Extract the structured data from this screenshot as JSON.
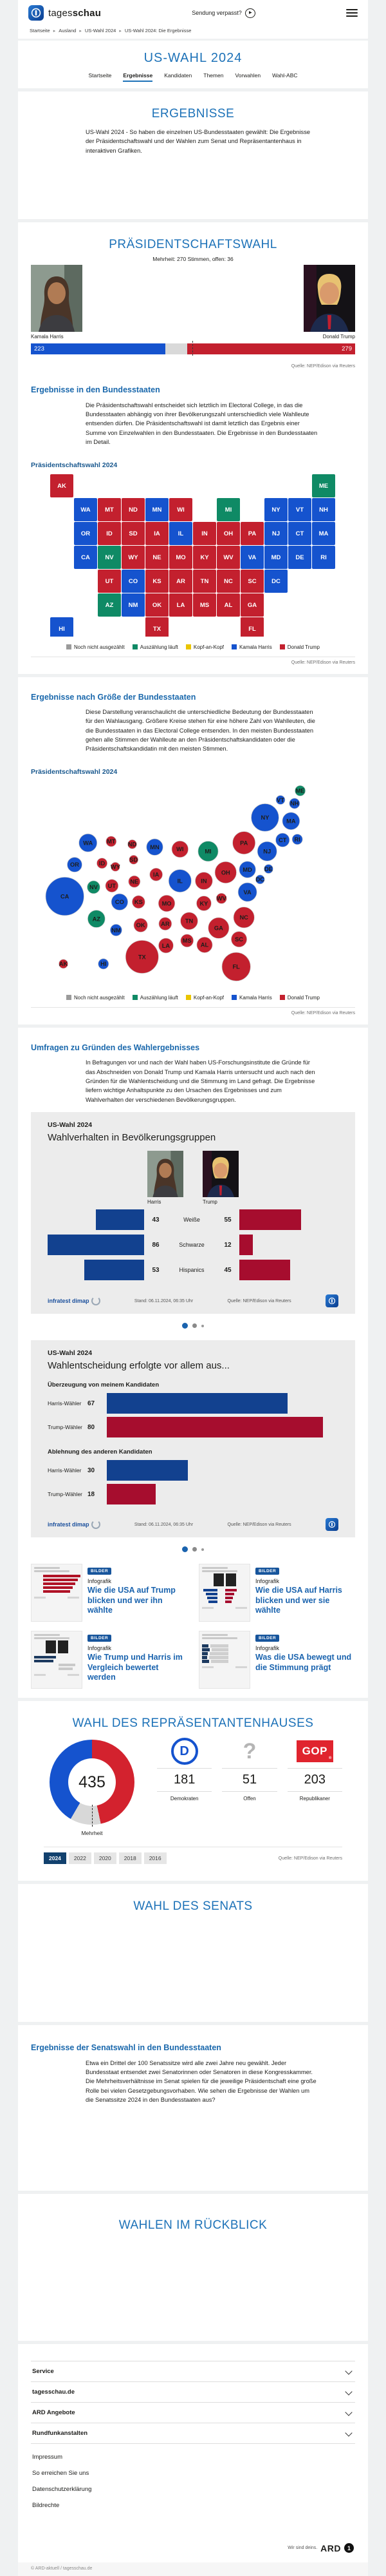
{
  "colors": {
    "harris_blue": "#1553ce",
    "trump_red": "#c3202e",
    "counting_green": "#0f8a65",
    "open_gray": "#9b9b9b",
    "tie_yellow": "#eac501",
    "info_navy": "#12418f",
    "info_crimson": "#a60d2e",
    "heading_blue": "#1d72b8"
  },
  "header": {
    "brand_prefix": "tages",
    "brand_suffix": "schau",
    "missed_show": "Sendung verpasst?"
  },
  "breadcrumb": [
    "Startseite",
    "Ausland",
    "US-Wahl 2024",
    "US-Wahl 2024: Die Ergebnisse"
  ],
  "page": {
    "title": "US-WAHL 2024"
  },
  "tabs": [
    {
      "label": "Startseite",
      "active": false
    },
    {
      "label": "Ergebnisse",
      "active": true
    },
    {
      "label": "Kandidaten",
      "active": false
    },
    {
      "label": "Themen",
      "active": false
    },
    {
      "label": "Vorwahlen",
      "active": false
    },
    {
      "label": "Wahl-ABC",
      "active": false
    }
  ],
  "ergebnisse": {
    "title": "ERGEBNISSE",
    "intro": "US-Wahl 2024 - So haben die einzelnen US-Bundesstaaten gewählt: Die Ergebnisse der Präsidentschaftswahl und der Wahlen zum Senat und Repräsentantenhaus in interaktiven Grafiken."
  },
  "praesident": {
    "title": "PRÄSIDENTSCHAFTSWAHL",
    "majority_note": "Mehrheit: 270 Stimmen, offen: 36",
    "harris_name": "Kamala Harris",
    "trump_name": "Donald Trump",
    "source": "Quelle: NEP/Edison via Reuters"
  },
  "staaten": {
    "heading": "Ergebnisse in den Bundesstaaten",
    "text": "Die Präsidentschaftswahl entscheidet sich letztlich im Electoral College, in das die Bundesstaaten abhängig von ihrer Bevölkerungszahl unterschiedlich viele Wahlleute entsenden dürfen. Die Präsidentschaftswahl ist damit letztlich das Ergebnis einer Summe von Einzelwahlen in den Bundesstaaten. Die Ergebnisse in den Bundesstaaten im Detail.",
    "chart_title": "Präsidentschaftswahl 2024",
    "source": "Quelle: NEP/Edison via Reuters"
  },
  "legend": [
    {
      "key": "open",
      "label": "Noch nicht ausgezählt"
    },
    {
      "key": "counting",
      "label": "Auszählung läuft"
    },
    {
      "key": "tie",
      "label": "Kopf-an-Kopf"
    },
    {
      "key": "harris",
      "label": "Kamala Harris"
    },
    {
      "key": "trump",
      "label": "Donald Trump"
    }
  ],
  "groesse": {
    "heading": "Ergebnisse nach Größe der Bundesstaaten",
    "text": "Diese Darstellung veranschaulicht die unterschiedliche Bedeutung der Bundesstaaten für den Wahlausgang. Größere Kreise stehen für eine höhere Zahl von Wahlleuten, die die Bundesstaaten in das Electoral College entsenden. In den meisten Bundesstaaten gehen alle Stimmen der Wahlleute an den Präsidentschaftskandidaten oder die Präsidentschaftskandidatin mit den meisten Stimmen.",
    "chart_title": "Präsidentschaftswahl 2024",
    "source": "Quelle: NEP/Edison via Reuters"
  },
  "umfragen": {
    "heading": "Umfragen zu Gründen des Wahlergebnisses",
    "text": "In Befragungen vor und nach der Wahl haben US-Forschungsinstitute die Gründe für das Abschneiden von Donald Trump und Kamala Harris untersucht und auch nach den Gründen für die Wahlentscheidung und die Stimmung im Land gefragt. Die Ergebnisse liefern wichtige Anhaltspunkte zu den Ursachen des Ergebnisses und zum Wahlverhalten der verschiedenen Bevölkerungsgruppen."
  },
  "infographic1": {
    "kicker": "US-Wahl 2024",
    "title": "Wahlverhalten in Bevölkerungsgruppen",
    "col_left": "Harris",
    "col_right": "Trump",
    "stand": "Stand:  06.11.2024, 06:35 Uhr",
    "quelle": "Quelle: NEP/Edison via Reuters",
    "brand": "infratest dimap"
  },
  "infographic2": {
    "kicker": "US-Wahl 2024",
    "title": "Wahlentscheidung erfolgte vor allem aus...",
    "stand": "Stand:  06.11.2024, 06:35 Uhr",
    "quelle": "Quelle: NEP/Edison via Reuters",
    "brand": "infratest dimap"
  },
  "teasers": [
    {
      "badge": "BILDER",
      "kicker": "Infografik",
      "title": "Wie die USA auf Trump blicken und wer ihn wählte",
      "thumb": "bars-red"
    },
    {
      "badge": "BILDER",
      "kicker": "Infografik",
      "title": "Wie die USA auf Harris blicken und wer sie wählte",
      "thumb": "compare"
    },
    {
      "badge": "BILDER",
      "kicker": "Infografik",
      "title": "Wie Trump und Harris im Vergleich bewertet werden",
      "thumb": "compare2"
    },
    {
      "badge": "BILDER",
      "kicker": "Infografik",
      "title": "Was die USA bewegt und die Stimmung prägt",
      "thumb": "mood"
    }
  ],
  "house": {
    "title": "WAHL DES REPRÄSENTANTENHAUSES",
    "total": "435",
    "majority_label": "Mehrheit",
    "parties": [
      {
        "logo": "dem",
        "value": "181",
        "label": "Demokraten"
      },
      {
        "logo": "question",
        "value": "51",
        "label": "Offen"
      },
      {
        "logo": "gop",
        "value": "203",
        "label": "Republikaner"
      }
    ],
    "years": [
      "2024",
      "2022",
      "2020",
      "2018",
      "2016"
    ],
    "active_year": "2024",
    "source": "Quelle: NEP/Edison via Reuters"
  },
  "senat": {
    "title": "WAHL DES SENATS"
  },
  "senat_ergebnisse": {
    "heading": "Ergebnisse der Senatswahl in den Bundesstaaten",
    "text": "Etwa ein Drittel der 100 Senatssitze wird alle zwei Jahre neu gewählt. Jeder Bundesstaat entsendet zwei Senatorinnen oder Senatoren in diese Kongresskammer. Die Mehrheitsverhältnisse im Senat spielen für die jeweilige Präsidentschaft eine große Rolle bei vielen Gesetzgebungsvorhaben. Wie sehen die Ergebnisse der Wahlen um die Senatssitze 2024 in den Bundesstaaten aus?"
  },
  "rueckblick": {
    "title": "WAHLEN IM RÜCKBLICK"
  },
  "footer": {
    "accordion": [
      "Service",
      "tagesschau.de",
      "ARD Angebote",
      "Rundfunkanstalten"
    ],
    "links": [
      "Impressum",
      "So erreichen Sie uns",
      "Datenschutzerklärung",
      "Bildrechte"
    ],
    "ard_claim": "Wir sind deins.",
    "ard_word": "ARD",
    "copyright": "© ARD-aktuell / tagesschau.de"
  },
  "chart_data": [
    {
      "type": "bar",
      "name": "electoral-college-gesamt",
      "title": "Präsidentschaftswahl Electoral College",
      "categories": [
        "Kamala Harris",
        "offen",
        "Donald Trump"
      ],
      "values": [
        223,
        36,
        279
      ],
      "majority": 270,
      "total": 538
    },
    {
      "type": "map",
      "name": "praesidentschaftswahl-bundesstaaten",
      "title": "Präsidentschaftswahl 2024",
      "legend": [
        "Noch nicht ausgezählt",
        "Auszählung läuft",
        "Kopf-an-Kopf",
        "Kamala Harris",
        "Donald Trump"
      ],
      "states": [
        {
          "code": "AK",
          "ev": 3,
          "status": "trump"
        },
        {
          "code": "AL",
          "ev": 9,
          "status": "trump"
        },
        {
          "code": "AR",
          "ev": 6,
          "status": "trump"
        },
        {
          "code": "AZ",
          "ev": 11,
          "status": "counting"
        },
        {
          "code": "CA",
          "ev": 54,
          "status": "harris"
        },
        {
          "code": "CO",
          "ev": 10,
          "status": "harris"
        },
        {
          "code": "CT",
          "ev": 7,
          "status": "harris"
        },
        {
          "code": "DC",
          "ev": 3,
          "status": "harris"
        },
        {
          "code": "DE",
          "ev": 3,
          "status": "harris"
        },
        {
          "code": "FL",
          "ev": 30,
          "status": "trump"
        },
        {
          "code": "GA",
          "ev": 16,
          "status": "trump"
        },
        {
          "code": "HI",
          "ev": 4,
          "status": "harris"
        },
        {
          "code": "IA",
          "ev": 6,
          "status": "trump"
        },
        {
          "code": "ID",
          "ev": 4,
          "status": "trump"
        },
        {
          "code": "IL",
          "ev": 19,
          "status": "harris"
        },
        {
          "code": "IN",
          "ev": 11,
          "status": "trump"
        },
        {
          "code": "KS",
          "ev": 6,
          "status": "trump"
        },
        {
          "code": "KY",
          "ev": 8,
          "status": "trump"
        },
        {
          "code": "LA",
          "ev": 8,
          "status": "trump"
        },
        {
          "code": "MA",
          "ev": 11,
          "status": "harris"
        },
        {
          "code": "MD",
          "ev": 10,
          "status": "harris"
        },
        {
          "code": "ME",
          "ev": 4,
          "status": "counting"
        },
        {
          "code": "MI",
          "ev": 15,
          "status": "counting"
        },
        {
          "code": "MN",
          "ev": 10,
          "status": "harris"
        },
        {
          "code": "MO",
          "ev": 10,
          "status": "trump"
        },
        {
          "code": "MS",
          "ev": 6,
          "status": "trump"
        },
        {
          "code": "MT",
          "ev": 4,
          "status": "trump"
        },
        {
          "code": "NC",
          "ev": 16,
          "status": "trump"
        },
        {
          "code": "ND",
          "ev": 3,
          "status": "trump"
        },
        {
          "code": "NE",
          "ev": 5,
          "status": "trump"
        },
        {
          "code": "NH",
          "ev": 4,
          "status": "harris"
        },
        {
          "code": "NJ",
          "ev": 14,
          "status": "harris"
        },
        {
          "code": "NM",
          "ev": 5,
          "status": "harris"
        },
        {
          "code": "NV",
          "ev": 6,
          "status": "counting"
        },
        {
          "code": "NY",
          "ev": 28,
          "status": "harris"
        },
        {
          "code": "OH",
          "ev": 17,
          "status": "trump"
        },
        {
          "code": "OK",
          "ev": 7,
          "status": "trump"
        },
        {
          "code": "OR",
          "ev": 8,
          "status": "harris"
        },
        {
          "code": "PA",
          "ev": 19,
          "status": "trump"
        },
        {
          "code": "RI",
          "ev": 4,
          "status": "harris"
        },
        {
          "code": "SC",
          "ev": 9,
          "status": "trump"
        },
        {
          "code": "SD",
          "ev": 3,
          "status": "trump"
        },
        {
          "code": "TN",
          "ev": 11,
          "status": "trump"
        },
        {
          "code": "TX",
          "ev": 40,
          "status": "trump"
        },
        {
          "code": "UT",
          "ev": 6,
          "status": "trump"
        },
        {
          "code": "VA",
          "ev": 13,
          "status": "harris"
        },
        {
          "code": "VT",
          "ev": 3,
          "status": "harris"
        },
        {
          "code": "WA",
          "ev": 12,
          "status": "harris"
        },
        {
          "code": "WI",
          "ev": 10,
          "status": "trump"
        },
        {
          "code": "WV",
          "ev": 4,
          "status": "trump"
        },
        {
          "code": "WY",
          "ev": 3,
          "status": "trump"
        }
      ]
    },
    {
      "type": "bubble",
      "name": "praesidentschaftswahl-nach-groesse",
      "title": "Präsidentschaftswahl 2024",
      "note": "Kreisfläche proportional zur Zahl der Wahlleute; Daten identisch mit Karte (states des map-Charts)"
    },
    {
      "type": "bar",
      "name": "wahlverhalten-bevoelkerungsgruppen",
      "title": "Wahlverhalten in Bevölkerungsgruppen",
      "categories": [
        "Weiße",
        "Schwarze",
        "Hispanics"
      ],
      "series": [
        {
          "name": "Harris",
          "values": [
            43,
            86,
            53
          ]
        },
        {
          "name": "Trump",
          "values": [
            55,
            12,
            45
          ]
        }
      ],
      "max": 100
    },
    {
      "type": "bar",
      "name": "wahlentscheidung-gruende",
      "title": "Wahlentscheidung erfolgte vor allem aus...",
      "groups": [
        {
          "label": "Überzeugung von meinem Kandidaten",
          "rows": [
            {
              "label": "Harris-Wähler",
              "value": 67,
              "color": "navy"
            },
            {
              "label": "Trump-Wähler",
              "value": 80,
              "color": "crimson"
            }
          ]
        },
        {
          "label": "Ablehnung des anderen Kandidaten",
          "rows": [
            {
              "label": "Harris-Wähler",
              "value": 30,
              "color": "navy"
            },
            {
              "label": "Trump-Wähler",
              "value": 18,
              "color": "crimson"
            }
          ]
        }
      ],
      "max": 85
    },
    {
      "type": "pie",
      "name": "repraesentantenhaus-sitze",
      "title": "Wahl des Repräsentantenhauses 2024",
      "total": 435,
      "slices": [
        {
          "label": "Republikaner",
          "value": 203,
          "color": "#d3222e"
        },
        {
          "label": "Offen",
          "value": 51,
          "color": "#d8d8d8"
        },
        {
          "label": "Demokraten",
          "value": 181,
          "color": "#1553ce"
        }
      ]
    }
  ]
}
